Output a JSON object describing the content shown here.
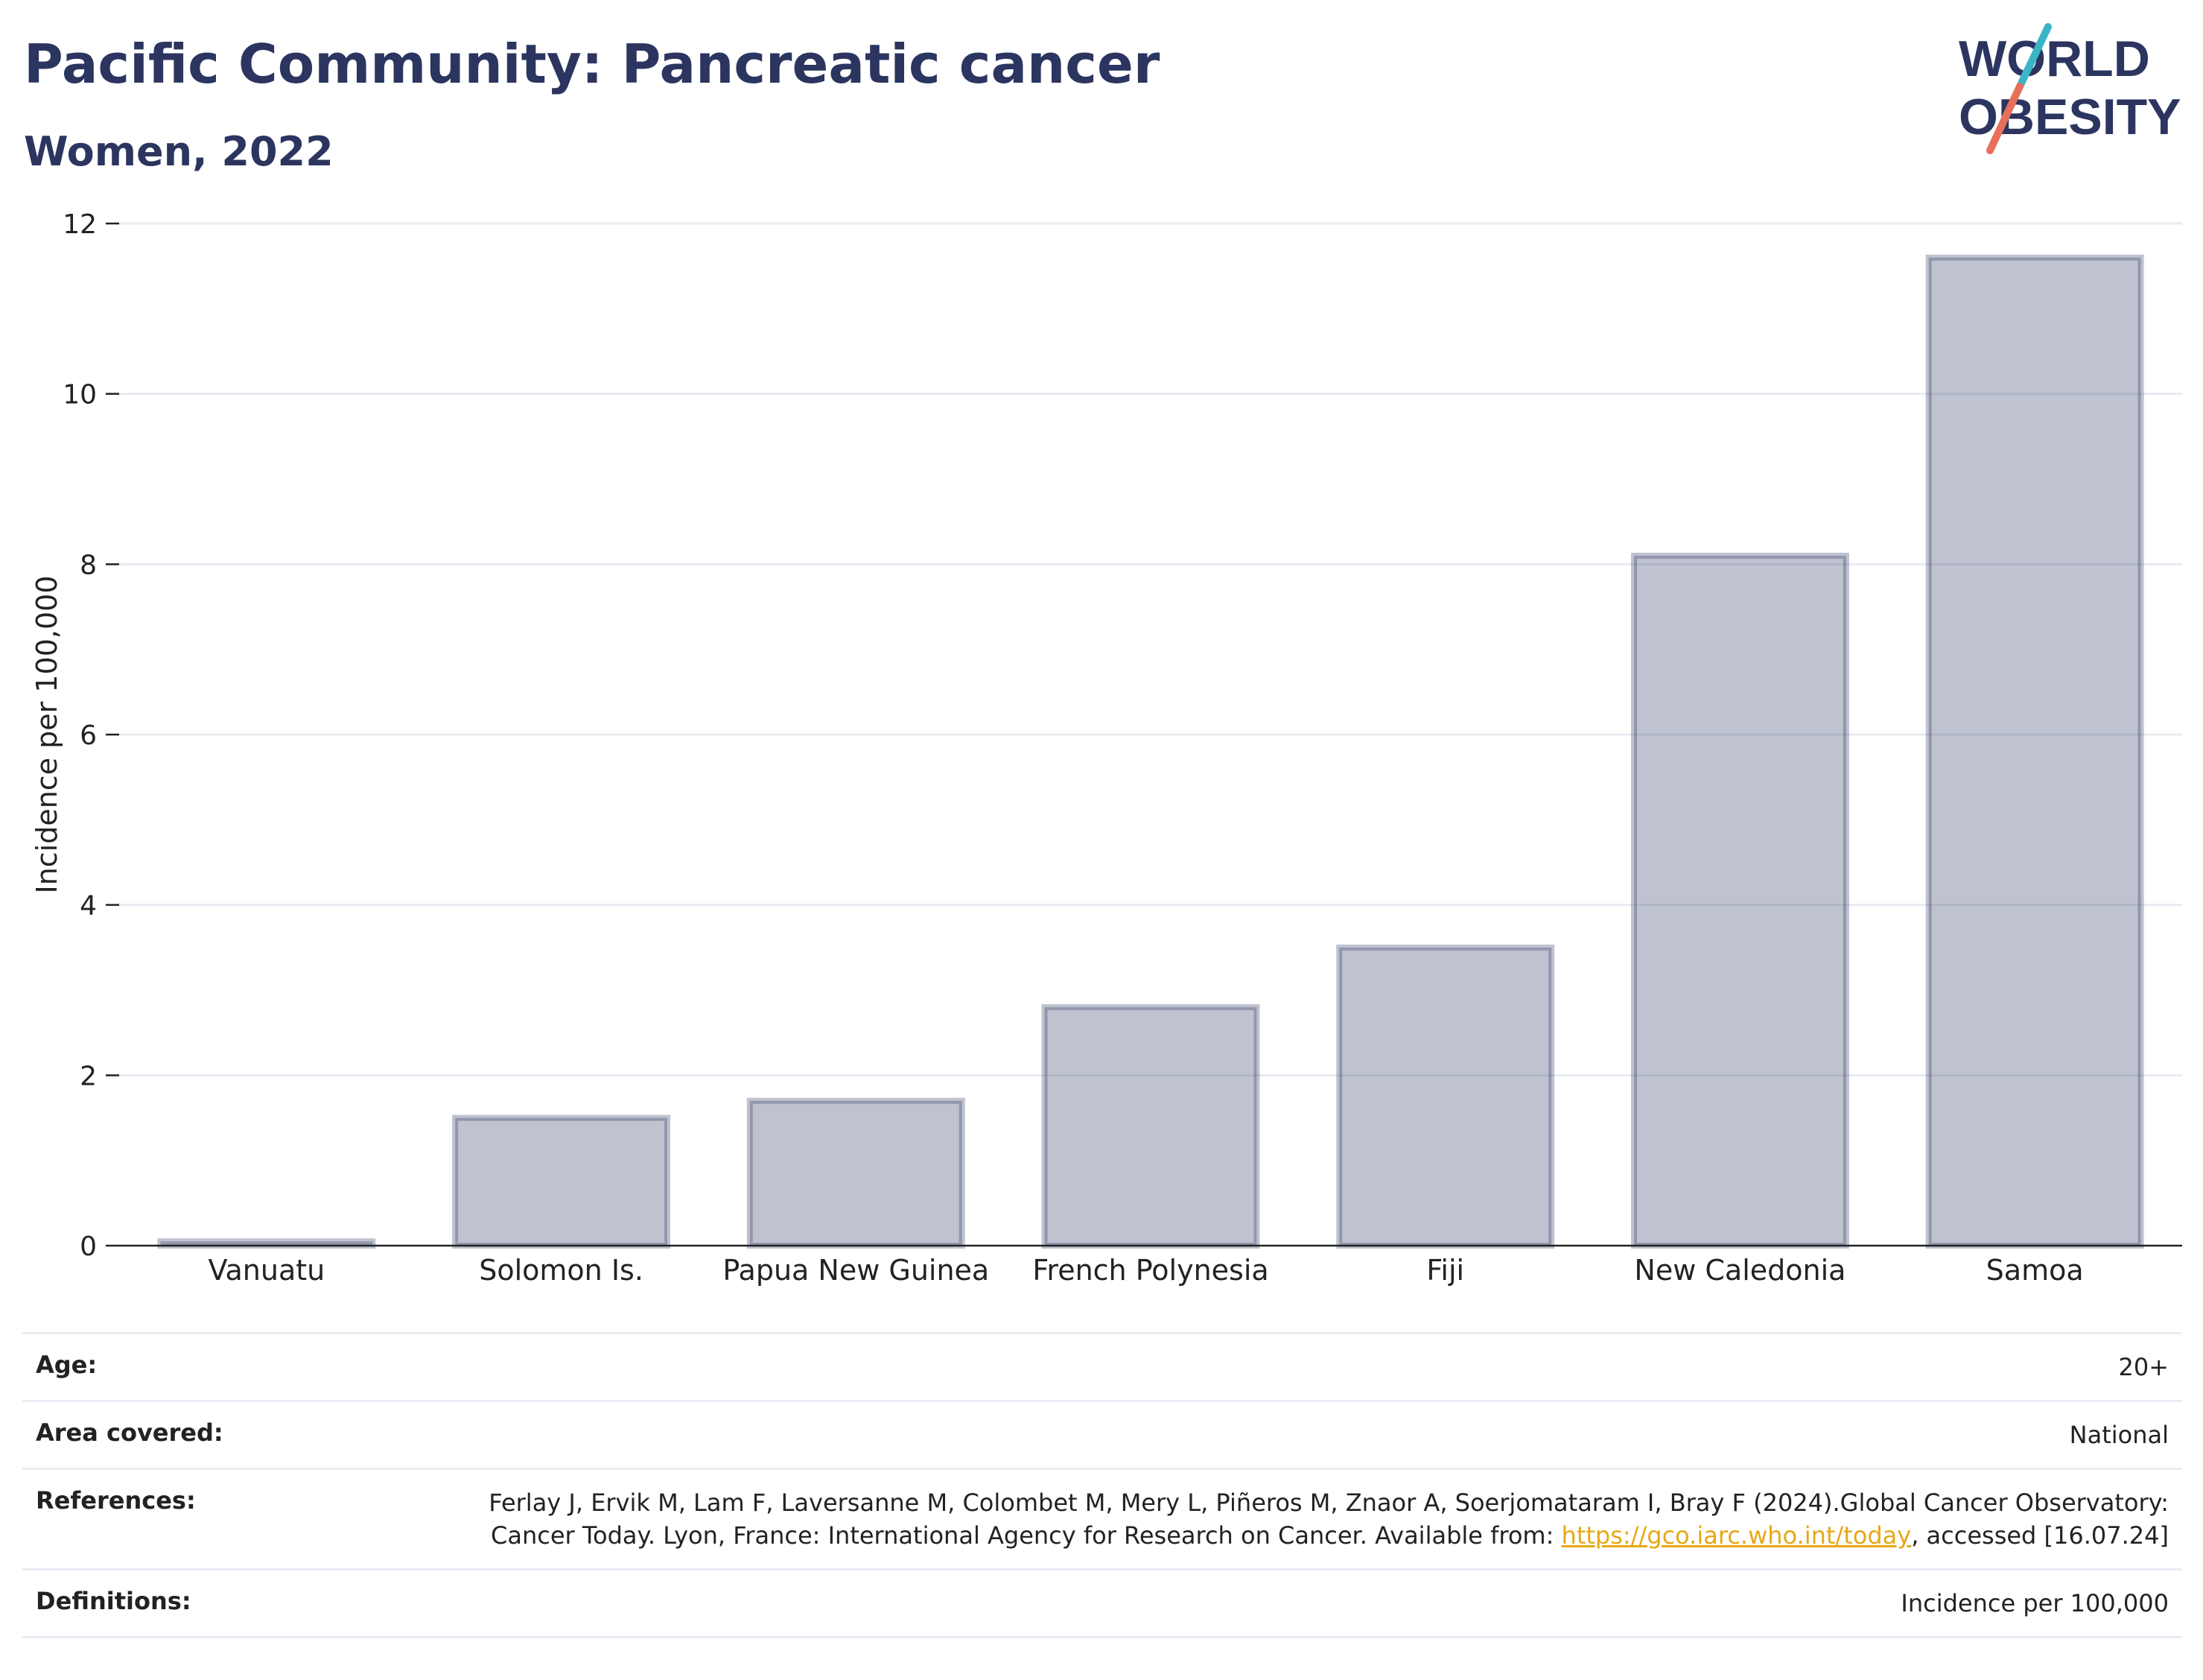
{
  "header": {
    "title": "Pacific Community: Pancreatic cancer",
    "subtitle": "Women, 2022"
  },
  "logo": {
    "line1": "WORLD",
    "line2": "OBESITY",
    "colors": {
      "text": "#2c3560",
      "slash_top": "#3ab5c6",
      "slash_bottom": "#e8705a"
    }
  },
  "chart_data": {
    "type": "bar",
    "categories": [
      "Vanuatu",
      "Solomon Is.",
      "Papua New Guinea",
      "French Polynesia",
      "Fiji",
      "New Caledonia",
      "Samoa"
    ],
    "values": [
      0.05,
      1.5,
      1.7,
      2.8,
      3.5,
      8.1,
      11.6
    ],
    "xlabel": "",
    "ylabel": "Incidence per 100,000",
    "ylim": [
      0,
      12
    ],
    "yticks": [
      0,
      2,
      4,
      6,
      8,
      10,
      12
    ],
    "grid": true,
    "bar_color": "#2c3560"
  },
  "meta": {
    "age_label": "Age:",
    "age_value": "20+",
    "area_label": "Area covered:",
    "area_value": "National",
    "references_label": "References:",
    "references_text_1": "Ferlay J, Ervik M, Lam F, Laversanne M, Colombet M, Mery L, Piñeros M, Znaor A, Soerjomataram I, Bray F (2024).Global Cancer Observatory: Cancer Today. Lyon, France: International Agency for Research on Cancer. Available from: ",
    "references_link": "https://gco.iarc.who.int/today",
    "references_text_2": ", accessed [16.07.24]",
    "definitions_label": "Definitions:",
    "definitions_value": "Incidence per 100,000"
  }
}
